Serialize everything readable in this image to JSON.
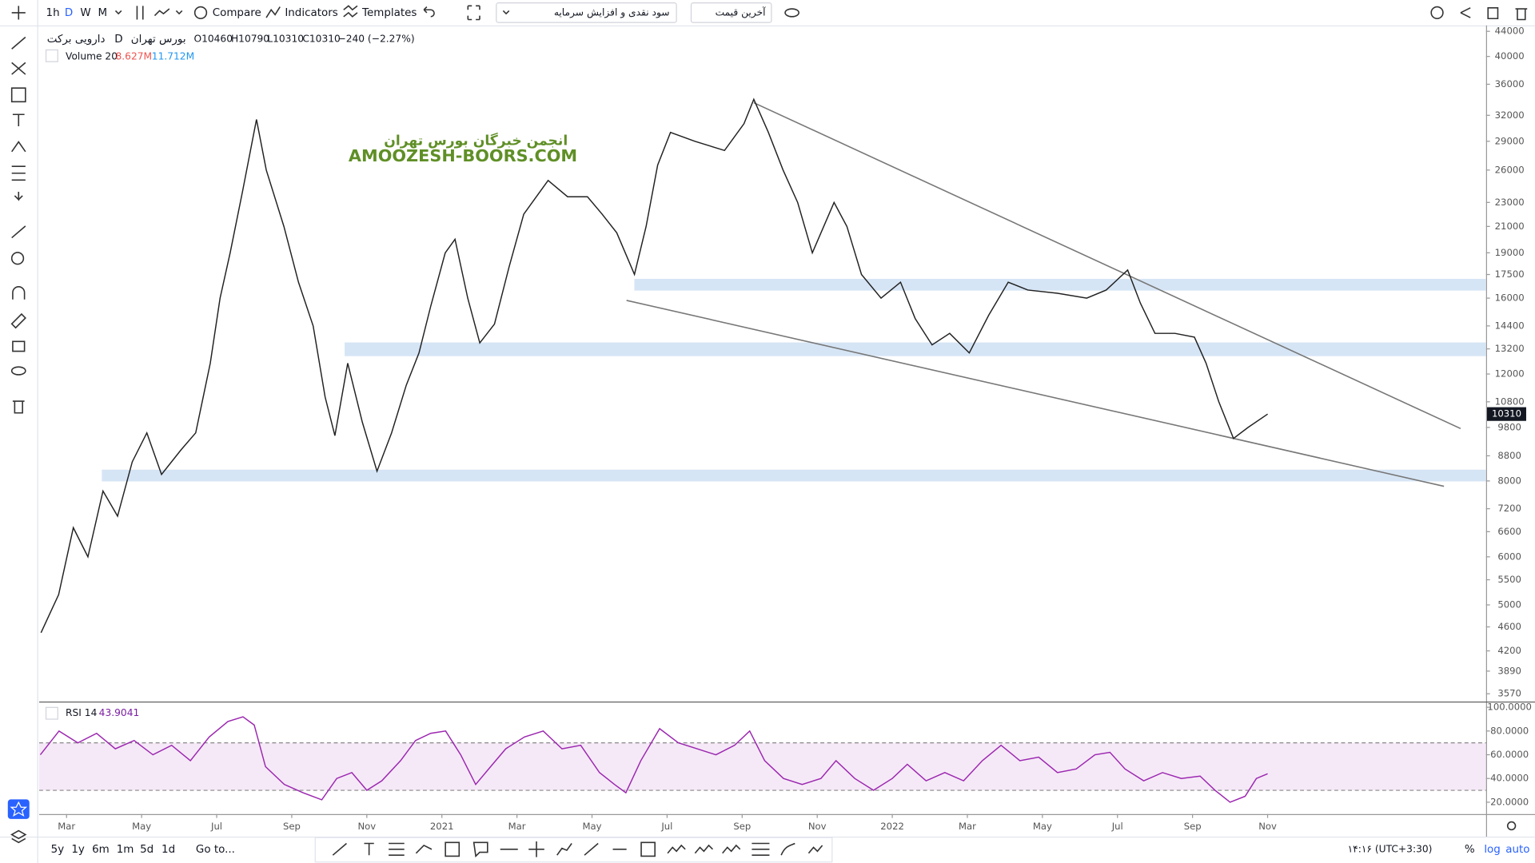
{
  "toolbar": {
    "intervals": [
      "1h",
      "D",
      "W",
      "M"
    ],
    "compare": "Compare",
    "indicators": "Indicators",
    "templates": "Templates",
    "indicator_select": "سود نقدی و افزایش سرمایه",
    "price_select": "آخرین قیمت"
  },
  "legend": {
    "symbol": "دارویی برکت",
    "interval": "D",
    "exchange": "بورس تهران",
    "open": "O10460",
    "high": "H10790",
    "low": "L10310",
    "close": "C10310",
    "change": "−240 (−2.27%)"
  },
  "volume_legend": {
    "name": "Volume 20",
    "value": "8.627M",
    "ma": "11.712M"
  },
  "rsi_legend": {
    "name": "RSI 14",
    "value": "43.9041"
  },
  "watermark": {
    "line1": "انجمن خبرگان بورس تهران",
    "line2": "AMOOZESH-BOORS.COM"
  },
  "bottom_bar": {
    "ranges": [
      "5y",
      "1y",
      "6m",
      "1m",
      "5d",
      "1d"
    ],
    "goto": "Go to...",
    "clock": "۱۴:۱۶ (UTC+3:30)",
    "percent": "%",
    "log": "log",
    "auto": "auto"
  },
  "chart_data": [
    {
      "type": "line",
      "color": "#222222",
      "log_scale": true,
      "grid": false,
      "xlim": [
        1.27,
        39.82
      ],
      "xticks": [
        {
          "value": 2,
          "label": "Mar"
        },
        {
          "value": 4,
          "label": "May"
        },
        {
          "value": 6,
          "label": "Jul"
        },
        {
          "value": 8,
          "label": "Sep"
        },
        {
          "value": 10,
          "label": "Nov"
        },
        {
          "value": 12,
          "label": "2021"
        },
        {
          "value": 14,
          "label": "Mar"
        },
        {
          "value": 16,
          "label": "May"
        },
        {
          "value": 18,
          "label": "Jul"
        },
        {
          "value": 20,
          "label": "Sep"
        },
        {
          "value": 22,
          "label": "Nov"
        },
        {
          "value": 24,
          "label": "2022"
        },
        {
          "value": 26,
          "label": "Mar"
        },
        {
          "value": 28,
          "label": "May"
        },
        {
          "value": 30,
          "label": "Jul"
        },
        {
          "value": 32,
          "label": "Sep"
        },
        {
          "value": 34,
          "label": "Nov"
        }
      ],
      "ylim": [
        3466,
        45160
      ],
      "yticks": [
        3570,
        3890,
        4200,
        4600,
        5000,
        5500,
        6000,
        6600,
        7200,
        8000,
        8800,
        9800,
        10800,
        12000,
        13200,
        14400,
        16000,
        17500,
        19000,
        21000,
        23000,
        26000,
        29000,
        32000,
        36000,
        40000,
        44000
      ],
      "x": [
        1.32,
        1.79,
        2.18,
        2.57,
        2.97,
        3.36,
        3.75,
        4.14,
        4.53,
        5.05,
        5.44,
        5.83,
        6.09,
        6.36,
        6.69,
        7.06,
        7.32,
        7.79,
        8.18,
        8.57,
        8.89,
        9.15,
        9.49,
        9.88,
        10.27,
        10.66,
        11.05,
        11.39,
        11.7,
        12.09,
        12.35,
        12.69,
        13.01,
        13.4,
        13.79,
        14.18,
        14.83,
        15.35,
        15.88,
        16.27,
        16.66,
        17.13,
        17.44,
        17.75,
        18.09,
        18.74,
        19.53,
        20.05,
        20.31,
        20.7,
        21.09,
        21.48,
        21.87,
        22.45,
        22.79,
        23.18,
        23.7,
        24.22,
        24.61,
        25.06,
        25.53,
        26.05,
        26.57,
        27.09,
        27.61,
        28.4,
        29.18,
        29.7,
        30.27,
        30.61,
        31,
        31.53,
        32.05,
        32.36,
        32.7,
        33.09,
        33.48,
        34
      ],
      "values": [
        4500,
        5200,
        6700,
        6000,
        7700,
        7000,
        8600,
        9600,
        8200,
        9000,
        9600,
        12500,
        16000,
        19000,
        24000,
        31500,
        26000,
        21000,
        17000,
        14400,
        11000,
        9500,
        12500,
        10000,
        8300,
        9600,
        11500,
        13000,
        15500,
        19000,
        20000,
        16000,
        13500,
        14500,
        18000,
        22000,
        25000,
        23500,
        23500,
        22000,
        20500,
        17500,
        21000,
        26500,
        30000,
        29000,
        28000,
        31000,
        34000,
        30000,
        26000,
        23000,
        19000,
        23000,
        21000,
        17500,
        16000,
        17000,
        14800,
        13400,
        14000,
        13000,
        15000,
        17000,
        16500,
        16300,
        16000,
        16500,
        17800,
        15700,
        14000,
        14000,
        13800,
        12500,
        10800,
        9400,
        9800,
        10310
      ]
    },
    {
      "type": "line",
      "color": "#9c27b0",
      "xlim": [
        1.27,
        39.82
      ],
      "ylim": [
        10,
        104
      ],
      "band": [
        30,
        70
      ],
      "yticks": [
        {
          "value": 20,
          "label": "20.0000"
        },
        {
          "value": 40,
          "label": "40.0000"
        },
        {
          "value": 60,
          "label": "60.0000"
        },
        {
          "value": 80,
          "label": "80.0000"
        },
        {
          "value": 100,
          "label": "100.0000"
        }
      ],
      "x": [
        1.3,
        1.8,
        2.3,
        2.8,
        3.3,
        3.8,
        4.3,
        4.8,
        5.3,
        5.8,
        6.3,
        6.7,
        7,
        7.3,
        7.8,
        8.3,
        8.8,
        9.2,
        9.6,
        10,
        10.4,
        10.9,
        11.3,
        11.7,
        12.1,
        12.5,
        12.9,
        13.3,
        13.7,
        14.2,
        14.7,
        15.2,
        15.7,
        16.2,
        16.6,
        16.9,
        17.3,
        17.8,
        18.3,
        18.8,
        19.3,
        19.8,
        20.2,
        20.6,
        21.1,
        21.6,
        22.1,
        22.5,
        23,
        23.5,
        24,
        24.4,
        24.9,
        25.4,
        25.9,
        26.4,
        26.9,
        27.4,
        27.9,
        28.4,
        28.9,
        29.4,
        29.8,
        30.2,
        30.7,
        31.2,
        31.7,
        32.2,
        32.6,
        33,
        33.4,
        33.7,
        34
      ],
      "values": [
        60,
        80,
        70,
        78,
        65,
        72,
        60,
        68,
        55,
        75,
        88,
        92,
        85,
        50,
        35,
        28,
        22,
        40,
        45,
        30,
        38,
        55,
        72,
        78,
        80,
        60,
        35,
        50,
        65,
        75,
        80,
        65,
        68,
        45,
        35,
        28,
        55,
        82,
        70,
        65,
        60,
        68,
        80,
        55,
        40,
        35,
        40,
        55,
        40,
        30,
        40,
        52,
        38,
        45,
        38,
        55,
        68,
        55,
        58,
        45,
        48,
        60,
        62,
        48,
        38,
        45,
        40,
        42,
        30,
        20,
        25,
        40,
        44
      ]
    }
  ]
}
